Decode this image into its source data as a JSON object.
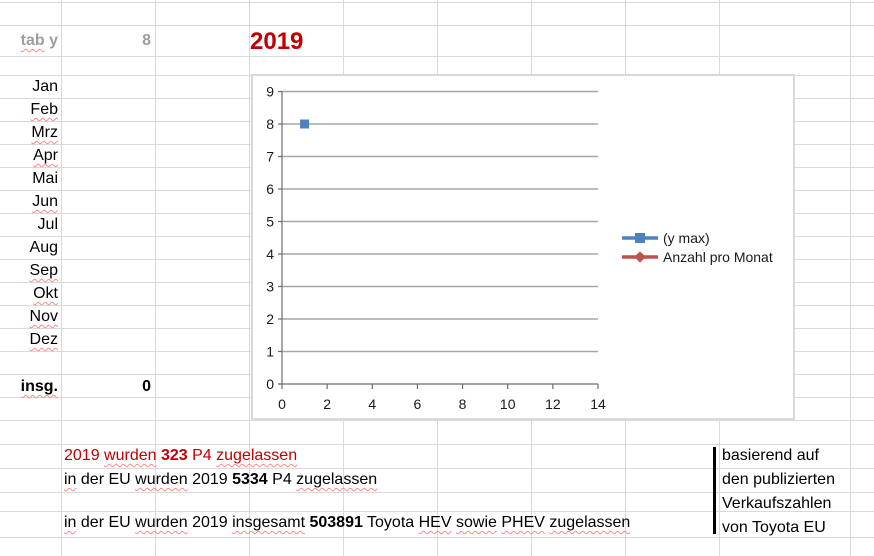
{
  "colors": {
    "accent_red": "#C00000",
    "muted_gray": "#9E9E9E",
    "sheet_gridline": "#D9D9D9",
    "chart_gridline": "#A6A6A6",
    "chart_axis": "#6E6E6E",
    "chart_border": "#D9D9D9",
    "series_blue": "#4F81BD",
    "series_red": "#C0504D",
    "squiggle_red": "#FF8A8A",
    "note_bar_black": "#000000"
  },
  "header": {
    "tab_label_parts": [
      {
        "t": "tab",
        "sq": true
      },
      {
        "t": " y",
        "sq": false
      }
    ],
    "tab_value": "8",
    "year": "2019"
  },
  "months": [
    {
      "label": "Jan",
      "sq": false
    },
    {
      "label": "Feb",
      "sq": true
    },
    {
      "label": "Mrz",
      "sq": true
    },
    {
      "label": "Apr",
      "sq": true
    },
    {
      "label": "Mai",
      "sq": false
    },
    {
      "label": "Jun",
      "sq": true
    },
    {
      "label": "Jul",
      "sq": false
    },
    {
      "label": "Aug",
      "sq": false
    },
    {
      "label": "Sep",
      "sq": true
    },
    {
      "label": "Okt",
      "sq": true
    },
    {
      "label": "Nov",
      "sq": true
    },
    {
      "label": "Dez",
      "sq": true
    }
  ],
  "total": {
    "label": "insg.",
    "label_sq": true,
    "value": "0"
  },
  "chart_data": {
    "type": "scatter",
    "title": "",
    "xlabel": "",
    "ylabel": "",
    "xlim": [
      0,
      14
    ],
    "ylim": [
      0,
      9
    ],
    "x_ticks": [
      0,
      2,
      4,
      6,
      8,
      10,
      12,
      14
    ],
    "y_ticks": [
      0,
      1,
      2,
      3,
      4,
      5,
      6,
      7,
      8,
      9
    ],
    "grid": true,
    "legend_position": "right",
    "series": [
      {
        "name": "(y max)",
        "marker": "square",
        "color": "#4F81BD",
        "points": [
          {
            "x": 1,
            "y": 8
          }
        ]
      },
      {
        "name": "Anzahl pro Monat",
        "marker": "diamond",
        "color": "#C0504D",
        "points": []
      }
    ]
  },
  "notes": {
    "lines": [
      {
        "color": "#C00000",
        "segments": [
          {
            "t": "2019 "
          },
          {
            "t": "wurden",
            "sq": true
          },
          {
            "t": " "
          },
          {
            "t": "323",
            "b": true
          },
          {
            "t": " P4 "
          },
          {
            "t": "zugelassen",
            "sq": true
          }
        ]
      },
      {
        "color": "#000000",
        "segments": [
          {
            "t": "in",
            "sq": true
          },
          {
            "t": " der EU "
          },
          {
            "t": "wurden",
            "sq": true
          },
          {
            "t": " 2019 "
          },
          {
            "t": "5334",
            "b": true
          },
          {
            "t": " P4 "
          },
          {
            "t": "zugelassen",
            "sq": true
          }
        ]
      },
      {
        "color": "#000000",
        "segments": [
          {
            "t": "in",
            "sq": true
          },
          {
            "t": " der EU "
          },
          {
            "t": "wurden",
            "sq": true
          },
          {
            "t": " 2019 "
          },
          {
            "t": "insgesamt",
            "sq": true
          },
          {
            "t": " "
          },
          {
            "t": "503891",
            "b": true
          },
          {
            "t": " Toyota "
          },
          {
            "t": "HEV",
            "sq": true
          },
          {
            "t": " "
          },
          {
            "t": "sowie",
            "sq": true
          },
          {
            "t": " "
          },
          {
            "t": "PHEV",
            "sq": true
          },
          {
            "t": " "
          },
          {
            "t": "zugelassen",
            "sq": true
          }
        ]
      }
    ]
  },
  "source_note": {
    "lines": [
      "basierend auf",
      "den publizierten",
      "Verkaufszahlen",
      "von Toyota EU"
    ]
  }
}
